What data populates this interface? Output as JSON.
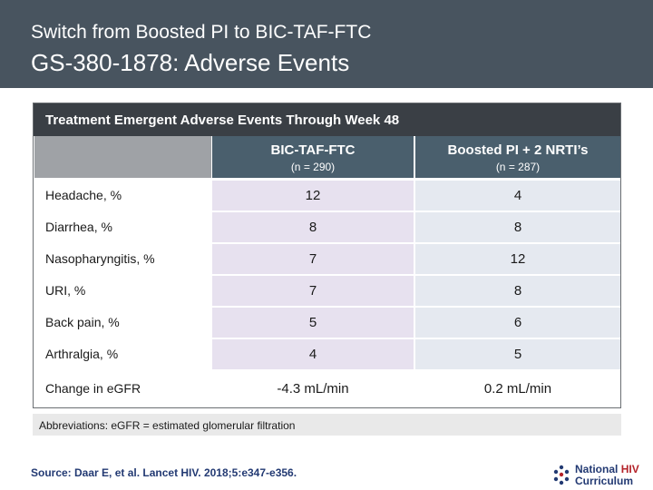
{
  "header": {
    "supertitle": "Switch from Boosted PI to BIC-TAF-FTC",
    "title": "GS-380-1878: Adverse Events"
  },
  "table": {
    "caption": "Treatment Emergent Adverse Events Through Week 48",
    "columns": [
      {
        "name": "BIC-TAF-FTC",
        "n": "(n = 290)"
      },
      {
        "name": "Boosted PI + 2 NRTI’s",
        "n": "(n = 287)"
      }
    ],
    "rows": [
      {
        "label": "Headache, %",
        "values": [
          "12",
          "4"
        ]
      },
      {
        "label": "Diarrhea, %",
        "values": [
          "8",
          "8"
        ]
      },
      {
        "label": "Nasopharyngitis, %",
        "values": [
          "7",
          "12"
        ]
      },
      {
        "label": "URI, %",
        "values": [
          "7",
          "8"
        ]
      },
      {
        "label": "Back pain, %",
        "values": [
          "5",
          "6"
        ]
      },
      {
        "label": "Arthralgia, %",
        "values": [
          "4",
          "5"
        ]
      },
      {
        "label": "Change in eGFR",
        "values": [
          "-4.3 mL/min",
          "0.2 mL/min"
        ]
      }
    ]
  },
  "abbreviations": "Abbreviations: eGFR = estimated glomerular filtration",
  "source": "Source: Daar E, et al. Lancet HIV. 2018;5:e347-e356.",
  "logo": {
    "line1": "National",
    "line1_accent": "HIV",
    "line2": "Curriculum",
    "icon": "nhc-logo-icon"
  },
  "colors": {
    "header_bg": "#48545f",
    "caption_bg": "#3a3f45",
    "column_header_bg": "#4a5f6d",
    "col1_cell_bg": "#e7e1ef",
    "col2_cell_bg": "#e5e9f0",
    "source_text": "#233a73",
    "logo_accent": "#b4232a"
  }
}
